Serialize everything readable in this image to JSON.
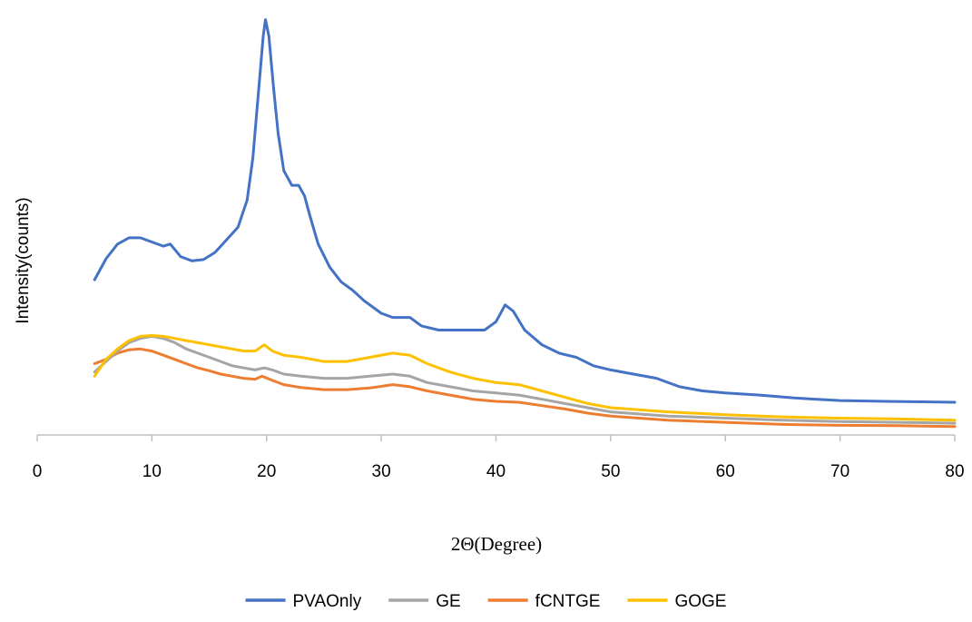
{
  "chart_data": {
    "type": "line",
    "title": "",
    "xlabel": "2Θ(Degree)",
    "ylabel": "Intensity(counts)",
    "xlim": [
      0,
      80
    ],
    "ylim": [
      0,
      100
    ],
    "x_ticks": [
      0,
      10,
      20,
      30,
      40,
      50,
      60,
      70,
      80
    ],
    "y_tick_labels_shown": false,
    "grid": false,
    "legend_position": "bottom",
    "series": [
      {
        "name": "PVAOnly",
        "color": "#4472C4",
        "points": [
          [
            5,
            37
          ],
          [
            6,
            42
          ],
          [
            7,
            45.5
          ],
          [
            8,
            47
          ],
          [
            9,
            47
          ],
          [
            10,
            46
          ],
          [
            11,
            45
          ],
          [
            11.6,
            45.5
          ],
          [
            12.5,
            42.5
          ],
          [
            13.5,
            41.5
          ],
          [
            14.5,
            41.8
          ],
          [
            15.5,
            43.5
          ],
          [
            16.5,
            46.5
          ],
          [
            17.5,
            49.5
          ],
          [
            18.3,
            56
          ],
          [
            18.8,
            66
          ],
          [
            19.3,
            82
          ],
          [
            19.7,
            95
          ],
          [
            19.9,
            99
          ],
          [
            20.2,
            95
          ],
          [
            20.6,
            83
          ],
          [
            21,
            72
          ],
          [
            21.5,
            63
          ],
          [
            22.2,
            59.5
          ],
          [
            22.8,
            59.5
          ],
          [
            23.3,
            57
          ],
          [
            23.8,
            52
          ],
          [
            24.5,
            45.5
          ],
          [
            25.5,
            40
          ],
          [
            26.5,
            36.5
          ],
          [
            27.5,
            34.5
          ],
          [
            28.5,
            32
          ],
          [
            30,
            29
          ],
          [
            31,
            28
          ],
          [
            32.5,
            28
          ],
          [
            33.5,
            26
          ],
          [
            35,
            25
          ],
          [
            37,
            25
          ],
          [
            39,
            25
          ],
          [
            40,
            27
          ],
          [
            40.8,
            31
          ],
          [
            41.5,
            29.5
          ],
          [
            42.5,
            25
          ],
          [
            44,
            21.5
          ],
          [
            45.5,
            19.5
          ],
          [
            47,
            18.5
          ],
          [
            48.5,
            16.5
          ],
          [
            50,
            15.5
          ],
          [
            52,
            14.5
          ],
          [
            54,
            13.5
          ],
          [
            56,
            11.5
          ],
          [
            58,
            10.5
          ],
          [
            60,
            10
          ],
          [
            63,
            9.5
          ],
          [
            66,
            8.8
          ],
          [
            70,
            8.2
          ],
          [
            74,
            8
          ],
          [
            77,
            7.9
          ],
          [
            80,
            7.8
          ]
        ]
      },
      {
        "name": "GE",
        "color": "#A5A5A5",
        "points": [
          [
            5,
            15
          ],
          [
            6,
            17.5
          ],
          [
            7,
            20
          ],
          [
            8,
            22
          ],
          [
            9,
            23
          ],
          [
            10,
            23.5
          ],
          [
            11,
            23
          ],
          [
            12,
            22
          ],
          [
            13,
            20.5
          ],
          [
            14,
            19.5
          ],
          [
            15,
            18.5
          ],
          [
            16,
            17.5
          ],
          [
            17,
            16.5
          ],
          [
            18,
            16
          ],
          [
            19,
            15.5
          ],
          [
            19.8,
            16
          ],
          [
            20.5,
            15.5
          ],
          [
            21.5,
            14.5
          ],
          [
            23,
            14
          ],
          [
            25,
            13.5
          ],
          [
            27,
            13.5
          ],
          [
            29,
            14
          ],
          [
            31,
            14.5
          ],
          [
            32.5,
            14
          ],
          [
            34,
            12.5
          ],
          [
            36,
            11.5
          ],
          [
            38,
            10.5
          ],
          [
            40,
            10
          ],
          [
            42,
            9.5
          ],
          [
            44,
            8.5
          ],
          [
            46,
            7.5
          ],
          [
            48,
            6.5
          ],
          [
            50,
            5.5
          ],
          [
            55,
            4.5
          ],
          [
            60,
            4
          ],
          [
            65,
            3.5
          ],
          [
            70,
            3.2
          ],
          [
            75,
            3
          ],
          [
            80,
            2.8
          ]
        ]
      },
      {
        "name": "fCNTGE",
        "color": "#ED7D31",
        "points": [
          [
            5,
            17
          ],
          [
            6,
            18
          ],
          [
            7,
            19.5
          ],
          [
            8,
            20.3
          ],
          [
            9,
            20.5
          ],
          [
            10,
            20
          ],
          [
            11,
            19
          ],
          [
            12,
            18
          ],
          [
            13,
            17
          ],
          [
            14,
            16
          ],
          [
            15,
            15.3
          ],
          [
            16,
            14.5
          ],
          [
            17,
            14
          ],
          [
            18,
            13.5
          ],
          [
            19,
            13.3
          ],
          [
            19.6,
            14
          ],
          [
            20.5,
            13
          ],
          [
            21.5,
            12
          ],
          [
            23,
            11.3
          ],
          [
            25,
            10.8
          ],
          [
            27,
            10.8
          ],
          [
            29,
            11.2
          ],
          [
            31,
            12
          ],
          [
            32.5,
            11.5
          ],
          [
            34,
            10.5
          ],
          [
            36,
            9.5
          ],
          [
            38,
            8.5
          ],
          [
            40,
            8
          ],
          [
            42,
            7.8
          ],
          [
            44,
            7
          ],
          [
            46,
            6.2
          ],
          [
            48,
            5.2
          ],
          [
            50,
            4.5
          ],
          [
            55,
            3.5
          ],
          [
            60,
            3
          ],
          [
            65,
            2.5
          ],
          [
            70,
            2.3
          ],
          [
            75,
            2.2
          ],
          [
            80,
            2
          ]
        ]
      },
      {
        "name": "GOGE",
        "color": "#FFC000",
        "points": [
          [
            5,
            14
          ],
          [
            6,
            18
          ],
          [
            7,
            20.5
          ],
          [
            8,
            22.5
          ],
          [
            9,
            23.5
          ],
          [
            10,
            23.7
          ],
          [
            11,
            23.5
          ],
          [
            12,
            23
          ],
          [
            13,
            22.5
          ],
          [
            14,
            22
          ],
          [
            15,
            21.5
          ],
          [
            16,
            21
          ],
          [
            17,
            20.5
          ],
          [
            18,
            20
          ],
          [
            19,
            20
          ],
          [
            19.8,
            21.5
          ],
          [
            20.5,
            20
          ],
          [
            21.5,
            19
          ],
          [
            23,
            18.5
          ],
          [
            25,
            17.5
          ],
          [
            27,
            17.5
          ],
          [
            29,
            18.5
          ],
          [
            31,
            19.5
          ],
          [
            32.5,
            19
          ],
          [
            34,
            17
          ],
          [
            36,
            15
          ],
          [
            38,
            13.5
          ],
          [
            40,
            12.5
          ],
          [
            42,
            12
          ],
          [
            44,
            10.5
          ],
          [
            46,
            9
          ],
          [
            48,
            7.5
          ],
          [
            50,
            6.5
          ],
          [
            55,
            5.5
          ],
          [
            60,
            4.8
          ],
          [
            65,
            4.3
          ],
          [
            70,
            4
          ],
          [
            75,
            3.8
          ],
          [
            80,
            3.5
          ]
        ]
      }
    ]
  }
}
